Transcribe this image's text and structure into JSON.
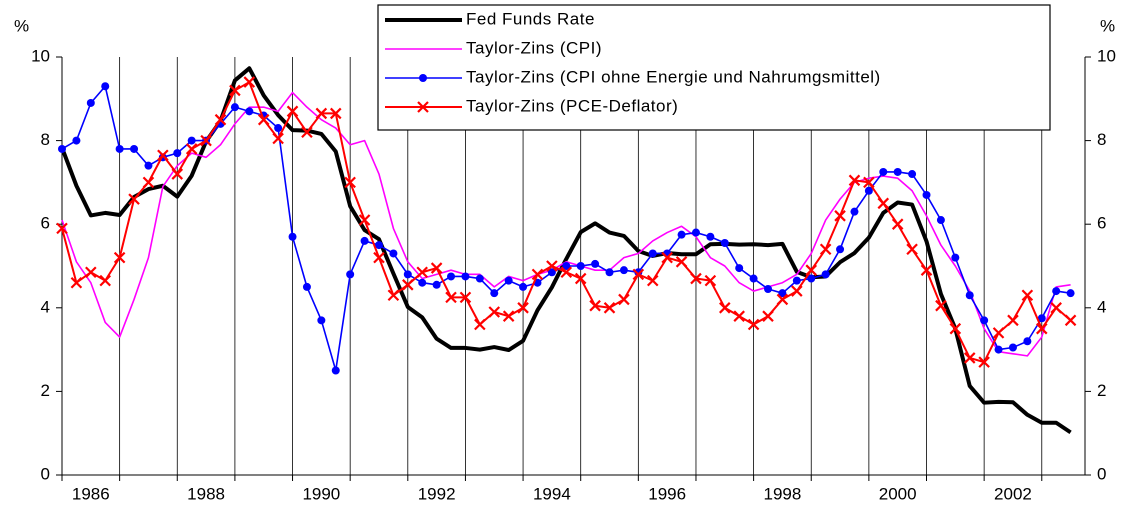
{
  "chart_data": {
    "type": "line",
    "ylabel": "%",
    "y2label": "%",
    "x": [
      1986,
      1986.25,
      1986.5,
      1986.75,
      1987,
      1987.25,
      1987.5,
      1987.75,
      1988,
      1988.25,
      1988.5,
      1988.75,
      1989,
      1989.25,
      1989.5,
      1989.75,
      1990,
      1990.25,
      1990.5,
      1990.75,
      1991,
      1991.25,
      1991.5,
      1991.75,
      1992,
      1992.25,
      1992.5,
      1992.75,
      1993,
      1993.25,
      1993.5,
      1993.75,
      1994,
      1994.25,
      1994.5,
      1994.75,
      1995,
      1995.25,
      1995.5,
      1995.75,
      1996,
      1996.25,
      1996.5,
      1996.75,
      1997,
      1997.25,
      1997.5,
      1997.75,
      1998,
      1998.25,
      1998.5,
      1998.75,
      1999,
      1999.25,
      1999.5,
      1999.75,
      2000,
      2000.25,
      2000.5,
      2000.75,
      2001,
      2001.25,
      2001.5,
      2001.75,
      2002,
      2002.25,
      2002.5,
      2002.75,
      2003,
      2003.25,
      2003.5
    ],
    "series": [
      {
        "name": "Fed Funds Rate",
        "color": "#000000",
        "marker": "none",
        "width": 4,
        "values": [
          7.83,
          6.92,
          6.21,
          6.27,
          6.22,
          6.65,
          6.84,
          6.92,
          6.66,
          7.16,
          7.98,
          8.47,
          9.44,
          9.73,
          9.08,
          8.61,
          8.25,
          8.24,
          8.16,
          7.74,
          6.43,
          5.86,
          5.64,
          4.82,
          4.02,
          3.77,
          3.26,
          3.04,
          3.04,
          3.0,
          3.06,
          2.99,
          3.21,
          3.94,
          4.49,
          5.17,
          5.81,
          6.02,
          5.8,
          5.72,
          5.36,
          5.24,
          5.31,
          5.28,
          5.28,
          5.52,
          5.53,
          5.51,
          5.52,
          5.5,
          5.53,
          4.86,
          4.73,
          4.75,
          5.09,
          5.31,
          5.68,
          6.27,
          6.52,
          6.47,
          5.59,
          4.33,
          3.5,
          2.13,
          1.73,
          1.75,
          1.74,
          1.44,
          1.25,
          1.25,
          1.02
        ]
      },
      {
        "name": "Taylor-Zins (CPI)",
        "color": "#ff00ff",
        "marker": "none",
        "width": 1.6,
        "values": [
          6.1,
          5.1,
          4.6,
          3.65,
          3.3,
          4.2,
          5.2,
          6.9,
          7.4,
          7.7,
          7.6,
          7.9,
          8.4,
          8.8,
          8.8,
          8.7,
          9.15,
          8.8,
          8.5,
          8.3,
          7.9,
          8.0,
          7.2,
          5.9,
          5.1,
          4.7,
          4.8,
          4.9,
          4.8,
          4.8,
          4.5,
          4.75,
          4.65,
          4.8,
          4.9,
          5.1,
          5.0,
          4.9,
          4.9,
          5.2,
          5.3,
          5.6,
          5.8,
          5.95,
          5.7,
          5.2,
          5.0,
          4.6,
          4.4,
          4.5,
          4.6,
          4.8,
          5.3,
          6.1,
          6.6,
          7.0,
          7.1,
          7.15,
          7.1,
          6.8,
          6.2,
          5.5,
          5.0,
          4.4,
          3.5,
          2.95,
          2.9,
          2.85,
          3.3,
          4.5,
          4.55
        ]
      },
      {
        "name": "Taylor-Zins (CPI ohne Energie und Nahrumgsmittel)",
        "color": "#0000ff",
        "marker": "circle",
        "width": 1.6,
        "values": [
          7.8,
          8.0,
          8.9,
          9.3,
          7.8,
          7.8,
          7.4,
          7.6,
          7.7,
          8.0,
          8.0,
          8.4,
          8.8,
          8.7,
          8.6,
          8.3,
          5.7,
          4.5,
          3.7,
          2.5,
          4.8,
          5.6,
          5.5,
          5.3,
          4.8,
          4.6,
          4.55,
          4.75,
          4.75,
          4.7,
          4.35,
          4.65,
          4.5,
          4.6,
          4.85,
          5.0,
          5.0,
          5.05,
          4.85,
          4.9,
          4.85,
          5.3,
          5.3,
          5.75,
          5.8,
          5.7,
          5.55,
          4.95,
          4.7,
          4.45,
          4.35,
          4.65,
          4.7,
          4.8,
          5.4,
          6.3,
          6.8,
          7.25,
          7.25,
          7.2,
          6.7,
          6.1,
          5.2,
          4.3,
          3.7,
          3.0,
          3.05,
          3.2,
          3.75,
          4.4,
          4.35
        ]
      },
      {
        "name": "Taylor-Zins (PCE-Deflator)",
        "color": "#ff0000",
        "marker": "cross",
        "width": 2,
        "values": [
          5.9,
          4.6,
          4.85,
          4.65,
          5.2,
          6.6,
          7.0,
          7.65,
          7.2,
          7.8,
          8.0,
          8.5,
          9.2,
          9.4,
          8.5,
          8.05,
          8.7,
          8.2,
          8.65,
          8.65,
          7.0,
          6.1,
          5.2,
          4.3,
          4.55,
          4.85,
          4.95,
          4.25,
          4.25,
          3.6,
          3.9,
          3.8,
          4.0,
          4.8,
          5.0,
          4.85,
          4.7,
          4.05,
          4.0,
          4.2,
          4.8,
          4.65,
          5.2,
          5.1,
          4.7,
          4.65,
          4.0,
          3.8,
          3.6,
          3.8,
          4.2,
          4.4,
          4.9,
          5.4,
          6.2,
          7.05,
          7.0,
          6.5,
          6.0,
          5.4,
          4.9,
          4.05,
          3.5,
          2.8,
          2.7,
          3.4,
          3.7,
          4.3,
          3.5,
          4.0,
          3.7
        ]
      }
    ],
    "xlim": [
      1986,
      2003.75
    ],
    "xticks": [
      {
        "value": 1986.5,
        "label": "1986"
      },
      {
        "value": 1988.5,
        "label": "1988"
      },
      {
        "value": 1990.5,
        "label": "1990"
      },
      {
        "value": 1992.5,
        "label": "1992"
      },
      {
        "value": 1994.5,
        "label": "1994"
      },
      {
        "value": 1996.5,
        "label": "1996"
      },
      {
        "value": 1998.5,
        "label": "1998"
      },
      {
        "value": 2000.5,
        "label": "2000"
      },
      {
        "value": 2002.5,
        "label": "2002"
      }
    ],
    "ylim": [
      0,
      10
    ],
    "yticks": [
      0,
      2,
      4,
      6,
      8,
      10
    ],
    "y2lim": [
      0,
      10
    ],
    "y2ticks": [
      0,
      2,
      4,
      6,
      8,
      10
    ],
    "xgrid": true,
    "legend": "top-right"
  }
}
